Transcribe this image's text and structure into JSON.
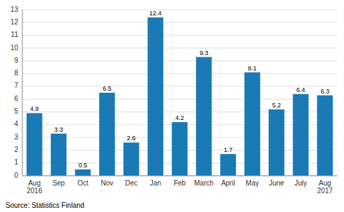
{
  "chart_data": {
    "type": "bar",
    "categories": [
      "Aug\n2016",
      "Sep",
      "Oct",
      "Nov",
      "Dec",
      "Jan",
      "Feb",
      "March",
      "April",
      "May",
      "June",
      "July",
      "Aug\n2017"
    ],
    "values": [
      4.9,
      3.3,
      0.5,
      6.5,
      2.6,
      12.4,
      4.2,
      9.3,
      1.7,
      8.1,
      5.2,
      6.4,
      6.3
    ],
    "color": "#1a7ab5",
    "ylim": [
      0,
      13
    ],
    "yticks": [
      0,
      1,
      2,
      3,
      4,
      5,
      6,
      7,
      8,
      9,
      10,
      11,
      12,
      13
    ],
    "grid": true,
    "data_labels": true,
    "source": "Source: Statistics Finland"
  }
}
